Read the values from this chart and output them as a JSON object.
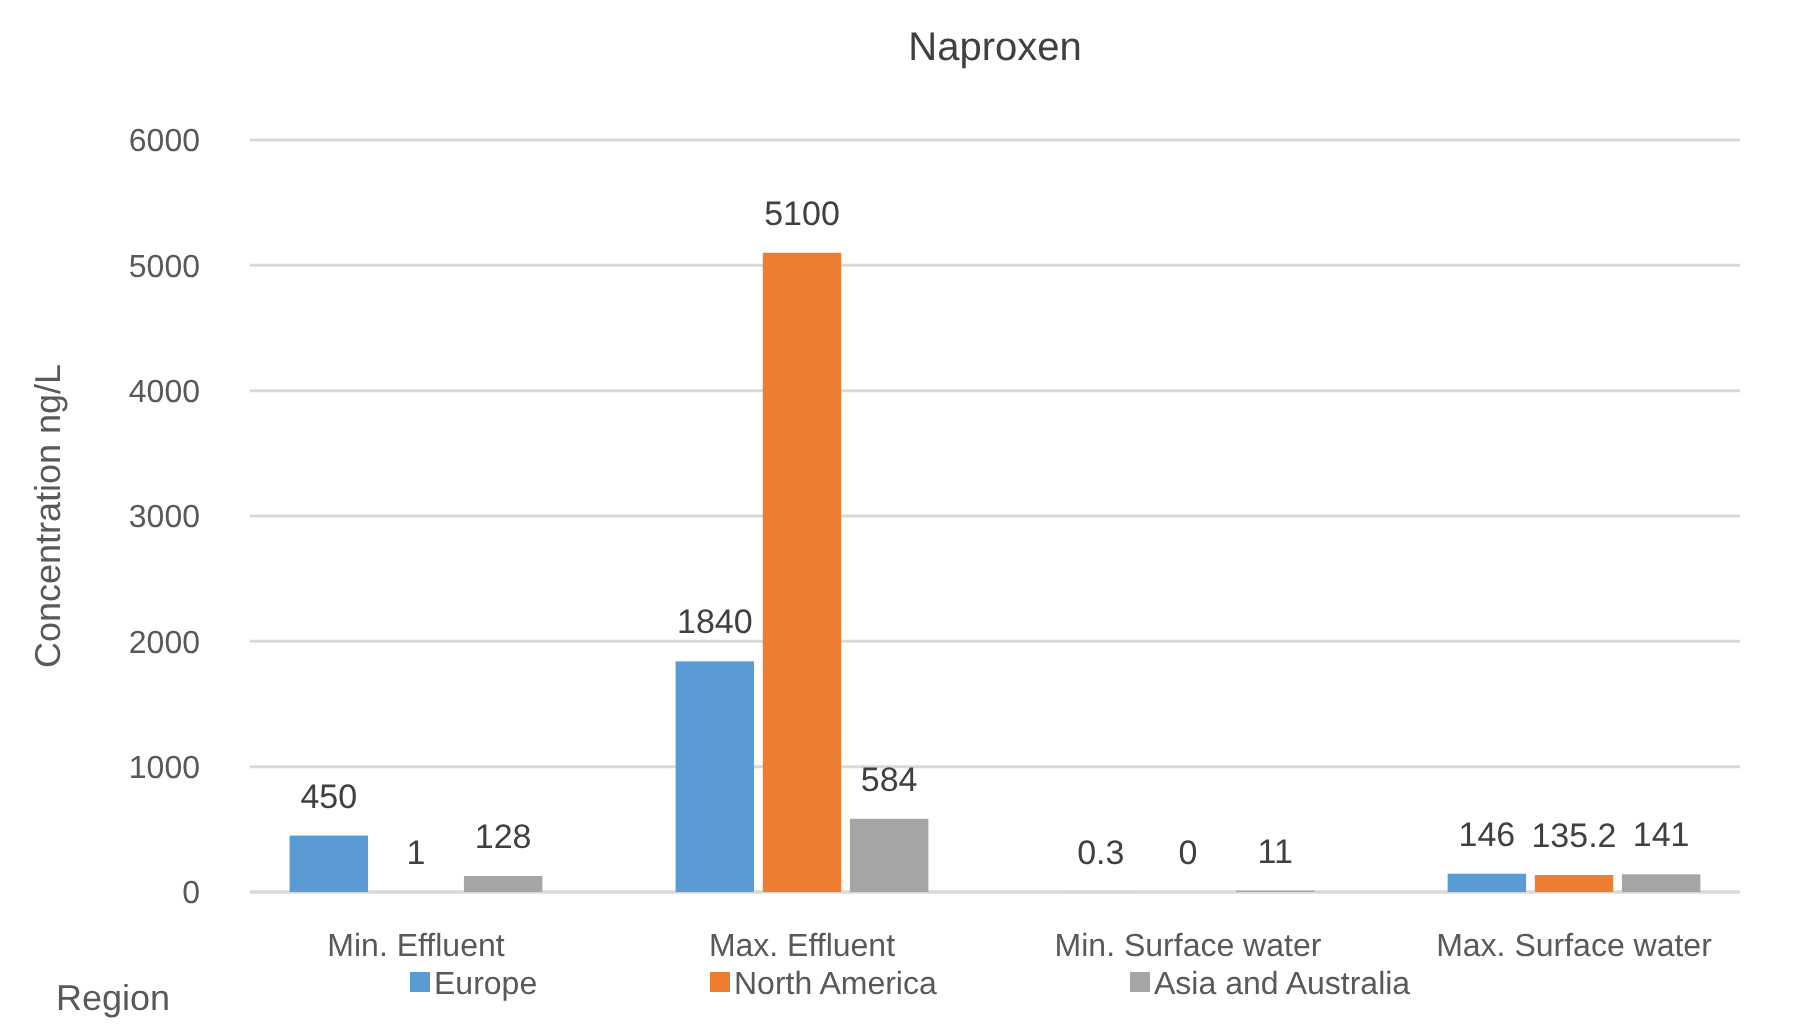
{
  "chart_data": {
    "type": "bar",
    "title": "Naproxen",
    "ylabel": "Concentration ng/L",
    "legend_title": "Region",
    "categories": [
      "Min. Effluent",
      "Max. Effluent",
      "Min. Surface water",
      "Max. Surface water"
    ],
    "series": [
      {
        "name": "Europe",
        "color": "#5b9bd5",
        "values": [
          450,
          1840,
          0.3,
          146
        ]
      },
      {
        "name": "North America",
        "color": "#ed7d31",
        "values": [
          1,
          5100,
          0,
          135.2
        ]
      },
      {
        "name": "Asia and Australia",
        "color": "#a5a5a5",
        "values": [
          128,
          584,
          11,
          141
        ]
      }
    ],
    "ylim": [
      0,
      6000
    ],
    "yticks": [
      0,
      1000,
      2000,
      3000,
      4000,
      5000,
      6000
    ],
    "grid": "y",
    "legend": "bottom",
    "data_labels": true
  }
}
